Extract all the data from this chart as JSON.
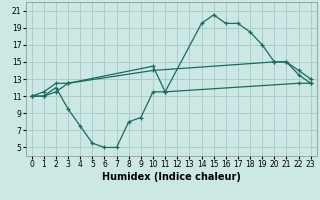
{
  "xlabel": "Humidex (Indice chaleur)",
  "xlim": [
    -0.5,
    23.5
  ],
  "ylim": [
    4,
    22
  ],
  "xticks": [
    0,
    1,
    2,
    3,
    4,
    5,
    6,
    7,
    8,
    9,
    10,
    11,
    12,
    13,
    14,
    15,
    16,
    17,
    18,
    19,
    20,
    21,
    22,
    23
  ],
  "yticks": [
    5,
    7,
    9,
    11,
    13,
    15,
    17,
    19,
    21
  ],
  "background_color": "#cce8e4",
  "grid_color": "#aaccca",
  "line_color": "#1a6b5a",
  "line1_x": [
    0,
    1,
    2,
    3,
    10,
    11,
    14,
    15,
    16,
    17,
    18,
    19,
    20,
    21,
    22,
    23
  ],
  "line1_y": [
    11,
    11.5,
    12.5,
    12.5,
    14.5,
    11.5,
    19.5,
    20.5,
    19.5,
    19.5,
    18.5,
    17,
    15,
    15,
    13.5,
    12.5
  ],
  "line2_x": [
    0,
    1,
    2,
    3,
    10,
    20,
    21,
    22,
    23
  ],
  "line2_y": [
    11,
    11,
    11.5,
    12.5,
    14,
    15,
    15,
    14,
    13
  ],
  "line3_x": [
    0,
    1,
    2,
    3,
    4,
    5,
    6,
    7,
    8,
    9,
    10,
    11,
    22,
    23
  ],
  "line3_y": [
    11,
    11,
    12,
    9.5,
    7.5,
    5.5,
    5,
    5,
    8,
    8.5,
    11.5,
    11.5,
    12.5,
    12.5
  ],
  "fontsize_xlabel": 7,
  "fontsize_tick": 5.5
}
